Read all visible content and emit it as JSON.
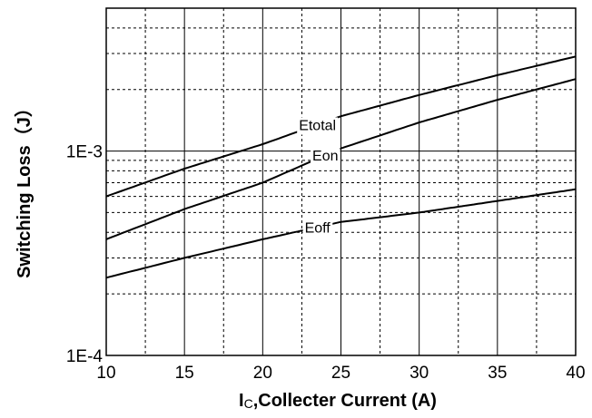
{
  "chart_data": {
    "type": "line",
    "xlabel_main": "I",
    "xlabel_sub": "C",
    "xlabel_rest": ",Collecter Current (A)",
    "ylabel": "Switching Loss（J）",
    "x_scale": "linear",
    "y_scale": "log",
    "xlim": [
      10,
      40
    ],
    "ylim": [
      0.0001,
      0.005
    ],
    "x_ticks": [
      10,
      15,
      20,
      25,
      30,
      35,
      40
    ],
    "x_tick_labels": [
      "10",
      "15",
      "20",
      "25",
      "30",
      "35",
      "40"
    ],
    "y_tick_labels": [
      {
        "value": 0.0001,
        "label": "1E-4"
      },
      {
        "value": 0.001,
        "label": "1E-3"
      }
    ],
    "grid": true,
    "legend": "none",
    "series": [
      {
        "name": "Etotal",
        "label_at": 23.5,
        "x": [
          10,
          15,
          20,
          25,
          30,
          35,
          40
        ],
        "y": [
          0.0006,
          0.00082,
          0.00108,
          0.00148,
          0.00188,
          0.00235,
          0.0029
        ]
      },
      {
        "name": "Eon",
        "label_at": 24,
        "x": [
          10,
          15,
          20,
          25,
          30,
          35,
          40
        ],
        "y": [
          0.00037,
          0.00052,
          0.0007,
          0.00103,
          0.00138,
          0.00178,
          0.00225
        ]
      },
      {
        "name": "Eoff",
        "label_at": 23.5,
        "x": [
          10,
          15,
          20,
          25,
          30,
          35,
          40
        ],
        "y": [
          0.00024,
          0.0003,
          0.00037,
          0.00045,
          0.0005,
          0.00057,
          0.00065
        ]
      }
    ]
  }
}
